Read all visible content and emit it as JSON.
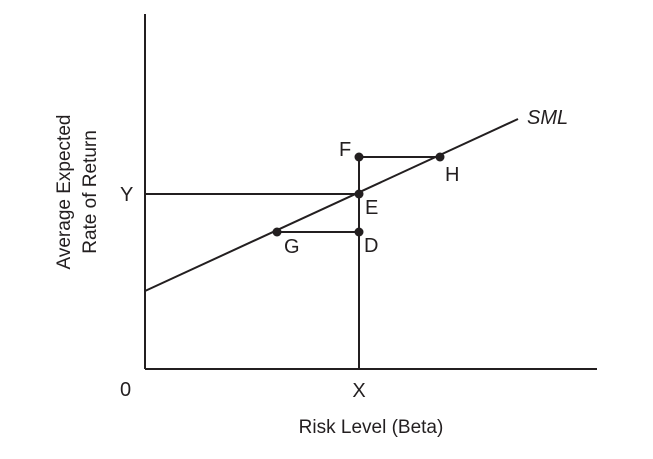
{
  "diagram": {
    "line_label": "SML",
    "y_axis_title": [
      "Average Expected",
      "Rate of Return"
    ],
    "x_axis_title": "Risk Level (Beta)",
    "origin_label": "0",
    "x_tick_label": "X",
    "y_tick_label": "Y",
    "points": {
      "E": "E",
      "F": "F",
      "D": "D",
      "G": "G",
      "H": "H"
    }
  }
}
